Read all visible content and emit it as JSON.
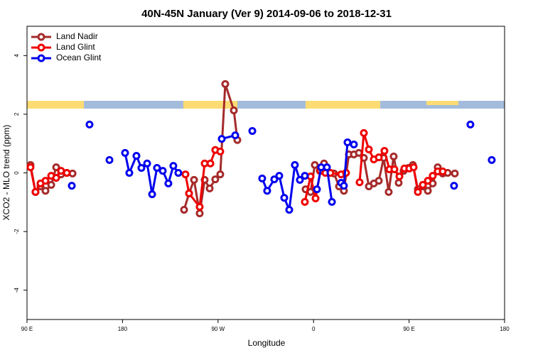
{
  "chart_data": {
    "type": "line",
    "title": "40N-45N January (Ver 9)   2014-09-06 to 2018-12-31",
    "x_label": "Longitude",
    "y_label": "XCO2 - MLO trend (ppm)",
    "xlim": [
      90,
      540
    ],
    "xticks": [
      {
        "value": 90,
        "label": "90 E"
      },
      {
        "value": 180,
        "label": "180"
      },
      {
        "value": 270,
        "label": "90 W"
      },
      {
        "value": 360,
        "label": "0"
      },
      {
        "value": 450,
        "label": "90 E"
      },
      {
        "value": 540,
        "label": "180"
      }
    ],
    "ylim": [
      -5,
      5
    ],
    "yticks": [
      -4,
      -2,
      0,
      2,
      4
    ],
    "legend": "top-left",
    "series": [
      {
        "name": "Land Nadir",
        "color": "#a52a2a",
        "x": [
          93.3,
          98.0,
          102.7,
          107.4,
          112.8,
          117.5,
          122.1,
          127.5,
          132.9,
          null,
          238.0,
          242.7,
          247.4,
          252.7,
          257.4,
          262.1,
          267.4,
          272.1,
          276.8,
          284.9,
          288.2,
          null,
          352.5,
          357.2,
          361.2,
          365.9,
          369.9,
          374.6,
          379.3,
          384.0,
          388.6,
          393.3,
          398.0,
          402.7,
          407.4,
          412.1,
          416.8,
          421.5,
          426.1,
          430.8,
          435.5,
          440.2,
          444.9,
          449.6,
          453.6,
          458.3,
          463.0,
          467.7,
          472.3,
          477.0,
          481.7,
          486.4,
          493.1
        ],
        "values": [
          0.27,
          -0.65,
          -0.46,
          -0.61,
          -0.41,
          0.19,
          -0.05,
          0,
          -0.02,
          null,
          -1.26,
          -0.7,
          -0.24,
          -1.38,
          -0.24,
          -0.53,
          -0.22,
          -0.05,
          3.03,
          2.13,
          1.12,
          null,
          -0.56,
          -0.65,
          0.27,
          0.07,
          0.32,
          0,
          -0.02,
          -0.46,
          -0.61,
          0.63,
          0.63,
          0.68,
          0.51,
          -0.46,
          -0.36,
          -0.27,
          0.51,
          -0.65,
          0.56,
          -0.34,
          0.07,
          0.17,
          0.27,
          -0.56,
          -0.46,
          -0.61,
          -0.36,
          0.19,
          -0.02,
          0,
          -0.02
        ]
      },
      {
        "name": "Land Glint",
        "color": "#ee0000",
        "x": [
          93.3,
          98.0,
          102.7,
          107.4,
          112.8,
          117.5,
          122.1,
          127.5,
          null,
          239.3,
          242.7,
          252.7,
          257.4,
          262.8,
          267.4,
          272.1,
          null,
          351.8,
          357.2,
          361.9,
          366.5,
          371.2,
          375.9,
          386.0,
          390.6,
          null,
          403.4,
          407.4,
          412.1,
          416.8,
          421.5,
          426.8,
          431.5,
          436.2,
          440.9,
          445.6,
          450.2,
          454.3,
          458.3,
          463.0,
          467.7,
          472.3,
          477.0,
          481.7
        ],
        "values": [
          0.19,
          -0.65,
          -0.36,
          -0.27,
          -0.1,
          -0.17,
          0.07,
          0,
          null,
          -0.05,
          -0.7,
          -1.16,
          0.32,
          0.32,
          0.78,
          0.73,
          null,
          -0.99,
          -0.12,
          -0.87,
          0.07,
          0,
          0,
          -0.05,
          0,
          null,
          -0.32,
          1.36,
          0.8,
          0.46,
          0.53,
          0.75,
          0.12,
          0.12,
          -0.12,
          0.15,
          0.15,
          0.19,
          -0.65,
          -0.41,
          -0.27,
          -0.1,
          0.05,
          0.05
        ]
      },
      {
        "name": "Ocean Glint",
        "color": "#0000ee",
        "x": [
          132.2,
          null,
          148.9,
          null,
          167.7,
          null,
          182.4,
          186.4,
          193.1,
          197.8,
          203.2,
          207.9,
          212.5,
          217.9,
          223.2,
          227.9,
          232.6,
          null,
          273.5,
          286.2,
          null,
          302.3,
          null,
          311.6,
          316.3,
          323.0,
          327.7,
          332.4,
          337.1,
          342.4,
          347.1,
          351.8,
          null,
          363.2,
          367.2,
          372.6,
          377.3,
          null,
          386.0,
          388.6,
          392.0,
          398.0,
          null,
          492.4,
          null,
          507.8,
          null,
          527.9
        ],
        "values": [
          -0.44,
          null,
          1.65,
          null,
          0.44,
          null,
          0.68,
          0,
          0.58,
          0.17,
          0.32,
          -0.73,
          0.17,
          0.07,
          -0.36,
          0.24,
          0,
          null,
          1.16,
          1.28,
          null,
          1.43,
          null,
          -0.19,
          -0.61,
          -0.22,
          -0.1,
          -0.85,
          -1.26,
          0.27,
          -0.24,
          -0.1,
          null,
          -0.56,
          0.19,
          0.19,
          -0.99,
          null,
          -0.34,
          -0.44,
          1.04,
          0.97,
          null,
          -0.44,
          null,
          1.65,
          null,
          0.44
        ]
      }
    ]
  }
}
